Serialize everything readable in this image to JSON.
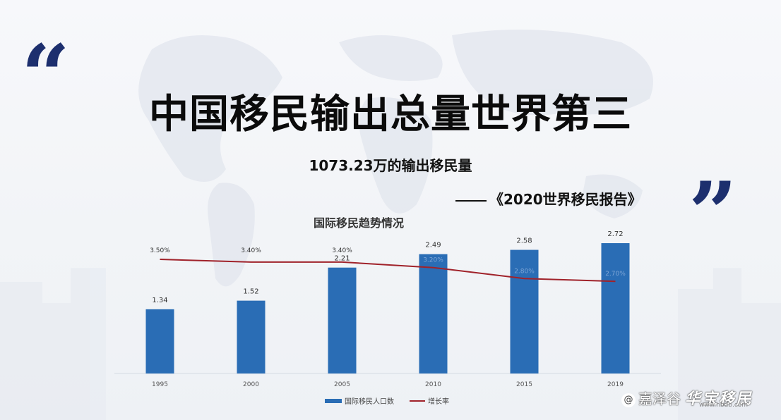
{
  "slide": {
    "headline": "中国移民输出总量世界第三",
    "subheadline": "1073.23万的输出移民量",
    "source": "《2020世界移民报告》",
    "quote_open": "“",
    "quote_close": "”"
  },
  "watermark": {
    "handle": "嘉泽谷",
    "brand": "华宝移民",
    "url": "www.hbdb.com",
    "icon": "at-icon"
  },
  "colors": {
    "bar": "#2a6db5",
    "line": "#a0222a",
    "quote": "#1d2f6e",
    "headline": "#0b0b0b"
  },
  "chart_data": {
    "type": "bar",
    "title": "国际移民趋势情况",
    "categories": [
      "1995",
      "2000",
      "2005",
      "2010",
      "2015",
      "2019"
    ],
    "series": [
      {
        "name": "国际移民人口数",
        "type": "bar",
        "values": [
          1.34,
          1.52,
          2.21,
          2.49,
          2.58,
          2.72
        ],
        "value_labels": [
          "1.34",
          "1.52",
          "2.21",
          "2.49",
          "2.58",
          "2.72"
        ]
      },
      {
        "name": "增长率",
        "type": "line",
        "values": [
          3.5,
          3.4,
          3.4,
          3.2,
          2.8,
          2.7
        ],
        "value_labels": [
          "3.50%",
          "3.40%",
          "3.40%",
          "3.20%",
          "2.80%",
          "2.70%"
        ]
      }
    ],
    "grid": false,
    "legend": "bottom"
  }
}
